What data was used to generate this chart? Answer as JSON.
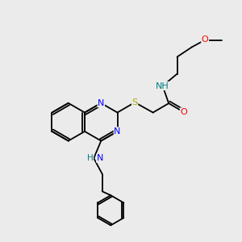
{
  "bg_color": "#ebebeb",
  "bond_color": "#000000",
  "atom_colors": {
    "N": "#0000ff",
    "O": "#ff0000",
    "S": "#aaaa00",
    "H": "#008080",
    "C": "#000000"
  },
  "font_size": 8.0,
  "lw": 1.3
}
